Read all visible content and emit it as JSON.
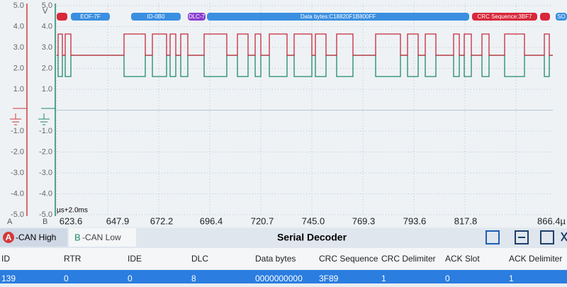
{
  "plot": {
    "unit": "V",
    "axis_a_ticks": [
      "5.0",
      "4.0",
      "3.0",
      "2.0",
      "1.0",
      "-1.0",
      "-2.0",
      "-3.0",
      "-4.0",
      "-5.0"
    ],
    "axis_b_ticks": [
      "5.0",
      "4.0",
      "3.0",
      "2.0",
      "1.0",
      "-1.0",
      "-2.0",
      "-3.0",
      "-4.0",
      "-5.0"
    ],
    "axis_a_label": "A",
    "axis_b_label": "B",
    "time_base": "µs+2.0ms",
    "time_ticks": [
      "623.6",
      "647.9",
      "672.2",
      "696.4",
      "720.7",
      "745.0",
      "769.3",
      "793.6",
      "817.8",
      "866.4µ"
    ]
  },
  "decoder_bar": [
    "EOF-7F",
    "ID-0B0",
    "DLC-7",
    "Data bytes:C18820F1B800FF",
    "CRC Sequence:3BF7",
    "SO"
  ],
  "tabs": {
    "a_letter": "A",
    "a_label": "-CAN High",
    "b_letter": "B",
    "b_label": "-CAN Low"
  },
  "panel_title": "Serial Decoder",
  "table": {
    "headers": [
      "ID",
      "RTR",
      "IDE",
      "DLC",
      "Data bytes",
      "CRC Sequence",
      "CRC Delimiter",
      "ACK Slot",
      "ACK Delimiter"
    ],
    "rows": [
      [
        "139",
        "0",
        "0",
        "8",
        "0000000000",
        "3F89",
        "1",
        "0",
        "1"
      ]
    ]
  }
}
